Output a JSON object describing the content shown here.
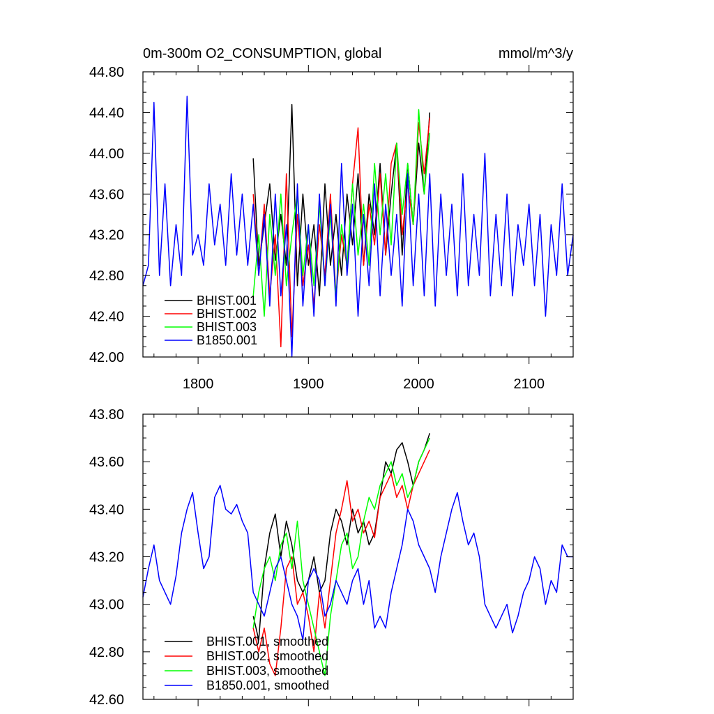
{
  "chart_data": [
    {
      "type": "line",
      "title": "0m-300m O2_CONSUMPTION, global",
      "units": "mmol/m^3/y",
      "xlim": [
        1750,
        2140
      ],
      "ylim": [
        42.0,
        44.8
      ],
      "x_ticks": [
        1800,
        1900,
        2000,
        2100
      ],
      "y_ticks": [
        42.0,
        42.4,
        42.8,
        43.2,
        43.6,
        44.0,
        44.4,
        44.8
      ],
      "y_tick_labels": [
        "42.00",
        "42.40",
        "42.80",
        "43.20",
        "43.60",
        "44.00",
        "44.40",
        "44.80"
      ],
      "legend_position": "bottom-left",
      "series": [
        {
          "name": "BHIST.001",
          "color": "#000000",
          "x": [
            1850,
            1855,
            1860,
            1865,
            1870,
            1875,
            1880,
            1885,
            1890,
            1895,
            1900,
            1905,
            1910,
            1915,
            1920,
            1925,
            1930,
            1935,
            1940,
            1945,
            1950,
            1955,
            1960,
            1965,
            1970,
            1975,
            1980,
            1985,
            1990,
            1995,
            2000,
            2005,
            2010
          ],
          "y": [
            43.95,
            42.9,
            43.3,
            43.7,
            42.95,
            43.4,
            42.9,
            44.48,
            42.7,
            43.6,
            42.9,
            43.3,
            42.6,
            43.7,
            42.9,
            43.4,
            42.8,
            43.6,
            43.1,
            43.8,
            42.9,
            43.6,
            43.2,
            43.9,
            43.0,
            43.6,
            44.1,
            43.0,
            43.9,
            43.3,
            44.1,
            43.6,
            44.4
          ]
        },
        {
          "name": "BHIST.002",
          "color": "#ff0000",
          "x": [
            1850,
            1855,
            1860,
            1865,
            1870,
            1875,
            1880,
            1885,
            1890,
            1895,
            1900,
            1905,
            1910,
            1915,
            1920,
            1925,
            1930,
            1935,
            1940,
            1945,
            1950,
            1955,
            1960,
            1965,
            1970,
            1975,
            1980,
            1985,
            1990,
            1995,
            2000,
            2005,
            2010
          ],
          "y": [
            43.6,
            42.8,
            43.5,
            42.6,
            43.2,
            42.1,
            43.8,
            42.2,
            43.4,
            42.7,
            43.1,
            42.5,
            43.3,
            42.8,
            43.6,
            42.6,
            43.2,
            42.9,
            43.7,
            44.25,
            42.9,
            43.5,
            43.1,
            43.8,
            43.0,
            43.9,
            44.1,
            43.2,
            43.7,
            43.3,
            44.3,
            43.8,
            44.35
          ]
        },
        {
          "name": "BHIST.003",
          "color": "#00ff00",
          "x": [
            1850,
            1855,
            1860,
            1865,
            1870,
            1875,
            1880,
            1885,
            1890,
            1895,
            1900,
            1905,
            1910,
            1915,
            1920,
            1925,
            1930,
            1935,
            1940,
            1945,
            1950,
            1955,
            1960,
            1965,
            1970,
            1975,
            1980,
            1985,
            1990,
            1995,
            2000,
            2005,
            2010
          ],
          "y": [
            42.6,
            43.2,
            42.4,
            43.4,
            42.8,
            43.6,
            42.7,
            43.2,
            43.6,
            42.8,
            43.3,
            42.7,
            43.5,
            42.7,
            43.4,
            42.6,
            43.3,
            42.9,
            43.7,
            43.0,
            43.5,
            42.9,
            43.9,
            43.2,
            43.8,
            43.1,
            44.1,
            43.4,
            43.9,
            43.3,
            44.43,
            43.6,
            44.2
          ]
        },
        {
          "name": "B1850.001",
          "color": "#0000ff",
          "x": [
            1750,
            1755,
            1760,
            1765,
            1770,
            1775,
            1780,
            1785,
            1790,
            1795,
            1800,
            1805,
            1810,
            1815,
            1820,
            1825,
            1830,
            1835,
            1840,
            1845,
            1850,
            1855,
            1860,
            1865,
            1870,
            1875,
            1880,
            1885,
            1890,
            1895,
            1900,
            1905,
            1910,
            1915,
            1920,
            1925,
            1930,
            1935,
            1940,
            1945,
            1950,
            1955,
            1960,
            1965,
            1970,
            1975,
            1980,
            1985,
            1990,
            1995,
            2000,
            2005,
            2010,
            2015,
            2020,
            2025,
            2030,
            2035,
            2040,
            2045,
            2050,
            2055,
            2060,
            2065,
            2070,
            2075,
            2080,
            2085,
            2090,
            2095,
            2100,
            2105,
            2110,
            2115,
            2120,
            2125,
            2130,
            2135,
            2140
          ],
          "y": [
            42.7,
            42.9,
            44.5,
            42.8,
            43.7,
            42.7,
            43.3,
            42.8,
            44.56,
            43.0,
            43.2,
            42.9,
            43.7,
            43.1,
            43.5,
            42.9,
            43.8,
            43.0,
            43.6,
            42.9,
            43.5,
            42.8,
            43.4,
            42.5,
            43.6,
            42.6,
            43.3,
            42.0,
            43.7,
            42.5,
            43.3,
            42.4,
            43.6,
            42.7,
            43.5,
            42.5,
            43.9,
            42.8,
            43.5,
            42.4,
            43.4,
            42.7,
            43.7,
            42.6,
            43.5,
            42.8,
            43.4,
            42.5,
            43.8,
            42.7,
            43.6,
            42.6,
            43.8,
            42.5,
            43.6,
            42.8,
            43.5,
            42.6,
            43.8,
            42.7,
            43.4,
            42.8,
            44.0,
            42.6,
            43.4,
            42.7,
            43.6,
            42.6,
            43.3,
            42.9,
            43.5,
            42.7,
            43.4,
            42.4,
            43.3,
            42.8,
            43.7,
            42.8,
            43.2
          ]
        }
      ]
    },
    {
      "type": "line",
      "xlim": [
        1750,
        2140
      ],
      "ylim": [
        42.6,
        43.8
      ],
      "x_ticks": [
        1800,
        1900,
        2000,
        2100
      ],
      "y_ticks": [
        42.6,
        42.8,
        43.0,
        43.2,
        43.4,
        43.6,
        43.8
      ],
      "y_tick_labels": [
        "42.60",
        "42.80",
        "43.00",
        "43.20",
        "43.40",
        "43.60",
        "43.80"
      ],
      "legend_position": "bottom-left",
      "series": [
        {
          "name": "BHIST.001, smoothed",
          "color": "#000000",
          "x": [
            1850,
            1855,
            1860,
            1865,
            1870,
            1875,
            1880,
            1885,
            1890,
            1895,
            1900,
            1905,
            1910,
            1915,
            1920,
            1925,
            1930,
            1935,
            1940,
            1945,
            1950,
            1955,
            1960,
            1965,
            1970,
            1975,
            1980,
            1985,
            1990,
            1995,
            2000,
            2005,
            2010
          ],
          "y": [
            42.95,
            42.85,
            43.15,
            43.3,
            43.38,
            43.2,
            43.35,
            43.25,
            43.1,
            43.05,
            43.1,
            43.2,
            43.05,
            43.1,
            43.3,
            43.4,
            43.35,
            43.25,
            43.4,
            43.3,
            43.35,
            43.25,
            43.3,
            43.45,
            43.6,
            43.55,
            43.65,
            43.68,
            43.6,
            43.5,
            43.6,
            43.65,
            43.72
          ]
        },
        {
          "name": "BHIST.002, smoothed",
          "color": "#ff0000",
          "x": [
            1850,
            1855,
            1860,
            1865,
            1870,
            1875,
            1880,
            1885,
            1890,
            1895,
            1900,
            1905,
            1910,
            1915,
            1920,
            1925,
            1930,
            1935,
            1940,
            1945,
            1950,
            1955,
            1960,
            1965,
            1970,
            1975,
            1980,
            1985,
            1990,
            1995,
            2000,
            2005,
            2010
          ],
          "y": [
            42.9,
            42.8,
            42.9,
            42.75,
            42.7,
            42.9,
            43.15,
            43.2,
            43.0,
            43.05,
            42.95,
            42.8,
            43.05,
            42.9,
            43.1,
            43.3,
            43.4,
            43.52,
            43.35,
            43.4,
            43.3,
            43.35,
            43.28,
            43.45,
            43.5,
            43.55,
            43.45,
            43.5,
            43.4,
            43.5,
            43.55,
            43.6,
            43.65
          ]
        },
        {
          "name": "BHIST.003, smoothed",
          "color": "#00ff00",
          "x": [
            1850,
            1855,
            1860,
            1865,
            1870,
            1875,
            1880,
            1885,
            1890,
            1895,
            1900,
            1905,
            1910,
            1915,
            1920,
            1925,
            1930,
            1935,
            1940,
            1945,
            1950,
            1955,
            1960,
            1965,
            1970,
            1975,
            1980,
            1985,
            1990,
            1995,
            2000,
            2005,
            2010
          ],
          "y": [
            42.9,
            43.05,
            43.15,
            43.2,
            43.1,
            43.25,
            43.3,
            43.15,
            43.35,
            43.1,
            43.0,
            42.9,
            42.8,
            42.7,
            42.95,
            43.1,
            43.25,
            43.3,
            43.15,
            43.2,
            43.35,
            43.45,
            43.4,
            43.5,
            43.55,
            43.6,
            43.5,
            43.55,
            43.45,
            43.5,
            43.6,
            43.65,
            43.7
          ]
        },
        {
          "name": "B1850.001, smoothed",
          "color": "#0000ff",
          "x": [
            1750,
            1755,
            1760,
            1765,
            1770,
            1775,
            1780,
            1785,
            1790,
            1795,
            1800,
            1805,
            1810,
            1815,
            1820,
            1825,
            1830,
            1835,
            1840,
            1845,
            1850,
            1855,
            1860,
            1865,
            1870,
            1875,
            1880,
            1885,
            1890,
            1895,
            1900,
            1905,
            1910,
            1915,
            1920,
            1925,
            1930,
            1935,
            1940,
            1945,
            1950,
            1955,
            1960,
            1965,
            1970,
            1975,
            1980,
            1985,
            1990,
            1995,
            2000,
            2005,
            2010,
            2015,
            2020,
            2025,
            2030,
            2035,
            2040,
            2045,
            2050,
            2055,
            2060,
            2065,
            2070,
            2075,
            2080,
            2085,
            2090,
            2095,
            2100,
            2105,
            2110,
            2115,
            2120,
            2125,
            2130,
            2135,
            2140
          ],
          "y": [
            43.03,
            43.15,
            43.25,
            43.1,
            43.05,
            43.0,
            43.12,
            43.3,
            43.4,
            43.47,
            43.3,
            43.15,
            43.2,
            43.45,
            43.5,
            43.4,
            43.38,
            43.42,
            43.35,
            43.3,
            43.05,
            43.0,
            42.95,
            43.05,
            43.15,
            43.2,
            43.1,
            43.0,
            42.95,
            42.85,
            43.1,
            43.15,
            43.1,
            42.95,
            43.0,
            43.1,
            43.05,
            43.0,
            43.1,
            43.15,
            43.0,
            43.1,
            42.9,
            42.95,
            42.9,
            43.05,
            43.15,
            43.25,
            43.4,
            43.35,
            43.25,
            43.2,
            43.15,
            43.05,
            43.2,
            43.3,
            43.4,
            43.47,
            43.35,
            43.25,
            43.3,
            43.2,
            43.0,
            42.95,
            42.9,
            42.95,
            43.0,
            42.88,
            42.95,
            43.05,
            43.1,
            43.2,
            43.15,
            43.0,
            43.1,
            43.05,
            43.25,
            43.2,
            43.2
          ]
        }
      ]
    }
  ]
}
